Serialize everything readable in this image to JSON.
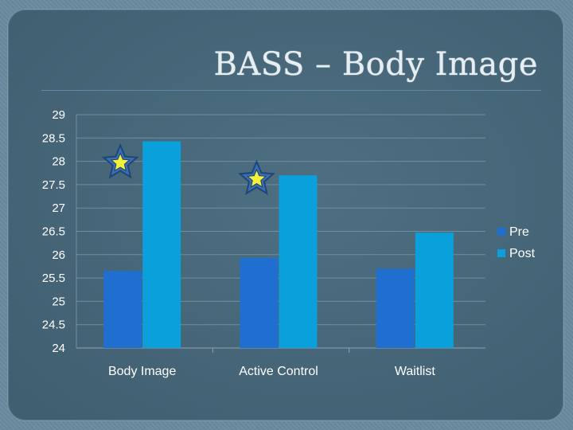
{
  "slide": {
    "title": "BASS – Body Image"
  },
  "chart_data": {
    "type": "bar",
    "categories": [
      "Body Image",
      "Active Control",
      "Waitlist"
    ],
    "series": [
      {
        "name": "Pre",
        "values": [
          25.65,
          25.93,
          25.7
        ],
        "color": "#1f6fd0"
      },
      {
        "name": "Post",
        "values": [
          28.43,
          27.7,
          26.47
        ],
        "color": "#0aa0dc"
      }
    ],
    "ylim": [
      24,
      29
    ],
    "yticks": [
      "24",
      "24.5",
      "25",
      "25.5",
      "26",
      "26.5",
      "27",
      "27.5",
      "28",
      "28.5",
      "29"
    ],
    "grid": true,
    "legend": "right",
    "markers": [
      {
        "type": "star",
        "category": "Body Image",
        "value": 28
      },
      {
        "type": "star",
        "category": "Active Control",
        "value": 27.65
      }
    ],
    "colors": {
      "gridline": "#6f8ea0",
      "tick_text": "#ffffff",
      "star_fill": "#f2f23a",
      "star_stroke": "#20457a"
    }
  }
}
